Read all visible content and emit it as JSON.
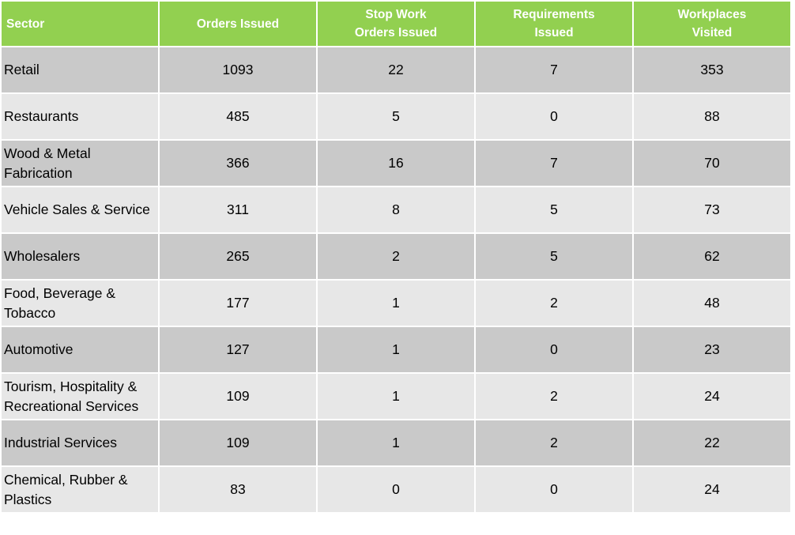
{
  "chart_data": {
    "type": "table",
    "columns": [
      "Sector",
      "Orders Issued",
      "Stop Work\nOrders Issued",
      "Requirements\nIssued",
      "Workplaces\nVisited"
    ],
    "rows": [
      {
        "sector": "Retail",
        "values": [
          1093,
          22,
          7,
          353
        ]
      },
      {
        "sector": "Restaurants",
        "values": [
          485,
          5,
          0,
          88
        ]
      },
      {
        "sector": "Wood & Metal Fabrication",
        "values": [
          366,
          16,
          7,
          70
        ]
      },
      {
        "sector": "Vehicle Sales & Service",
        "values": [
          311,
          8,
          5,
          73
        ]
      },
      {
        "sector": "Wholesalers",
        "values": [
          265,
          2,
          5,
          62
        ]
      },
      {
        "sector": "Food, Beverage & Tobacco",
        "values": [
          177,
          1,
          2,
          48
        ]
      },
      {
        "sector": "Automotive",
        "values": [
          127,
          1,
          0,
          23
        ]
      },
      {
        "sector": "Tourism, Hospitality & Recreational Services",
        "values": [
          109,
          1,
          2,
          24
        ]
      },
      {
        "sector": "Industrial Services",
        "values": [
          109,
          1,
          2,
          22
        ]
      },
      {
        "sector": "Chemical, Rubber & Plastics",
        "values": [
          83,
          0,
          0,
          24
        ]
      }
    ]
  },
  "colors": {
    "header_bg": "#92d050",
    "header_text": "#ffffff",
    "row_dark": "#c9c9c9",
    "row_light": "#e7e7e7"
  }
}
